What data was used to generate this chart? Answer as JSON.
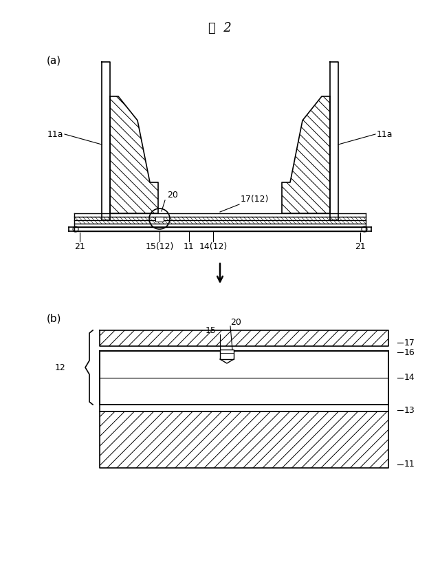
{
  "title": "図  2",
  "bg_color": "#ffffff",
  "fig_width": 6.4,
  "fig_height": 8.24,
  "label_a": "(a)",
  "label_b": "(b)",
  "line_color": "#000000"
}
